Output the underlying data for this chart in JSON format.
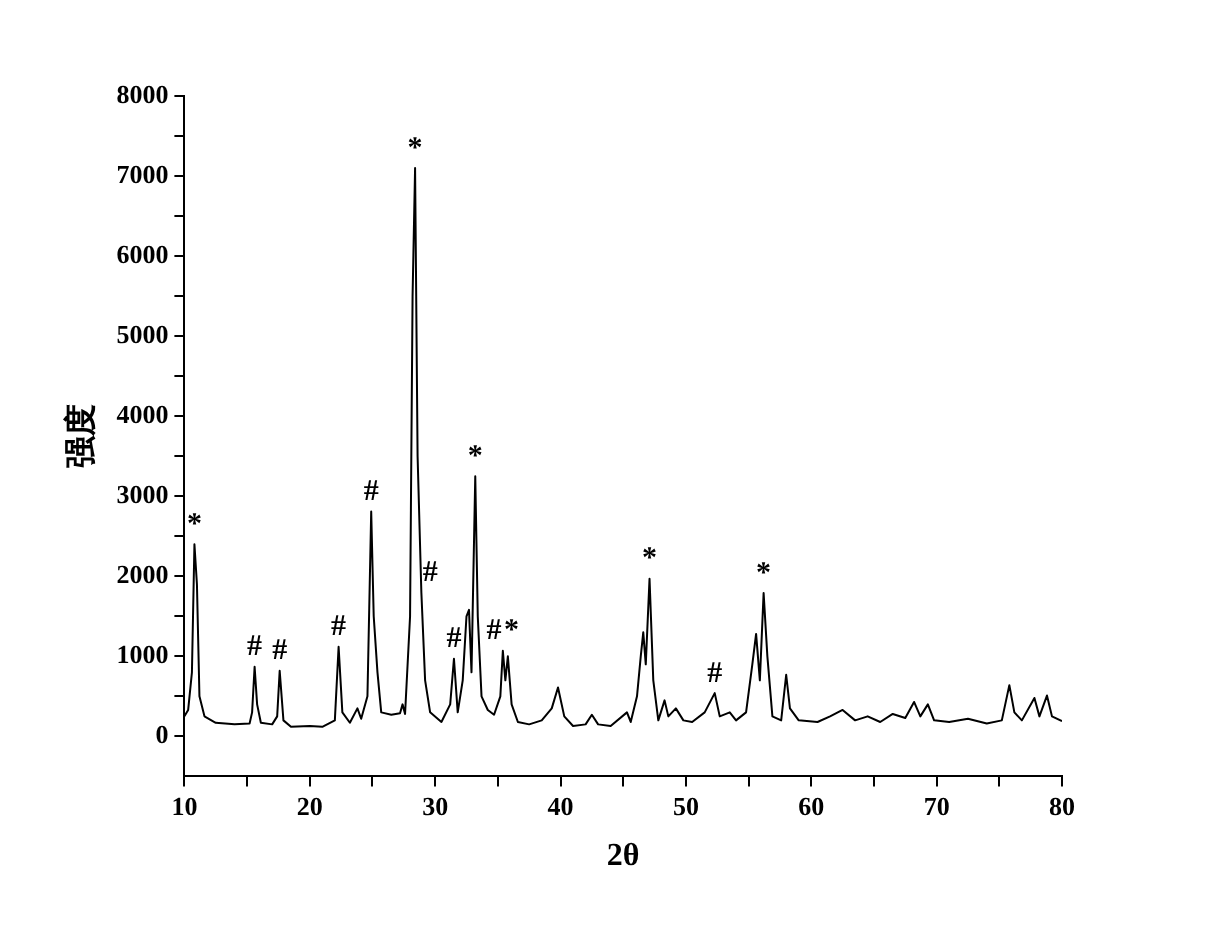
{
  "chart_data": {
    "type": "line",
    "xlabel": "2θ",
    "ylabel": "强度",
    "color": "#000000",
    "xlim": [
      10,
      80
    ],
    "xticks": [
      10,
      {
        "value": 15,
        "label": null
      },
      20,
      {
        "value": 25,
        "label": null
      },
      30,
      {
        "value": 35,
        "label": null
      },
      40,
      {
        "value": 45,
        "label": null
      },
      50,
      {
        "value": 55,
        "label": null
      },
      60,
      {
        "value": 65,
        "label": null
      },
      70,
      {
        "value": 75,
        "label": null
      },
      80
    ],
    "ylim": [
      -500,
      8000
    ],
    "yticks": [
      0,
      {
        "value": 500,
        "label": null
      },
      1000,
      {
        "value": 1500,
        "label": null
      },
      2000,
      {
        "value": 2500,
        "label": null
      },
      3000,
      {
        "value": 3500,
        "label": null
      },
      4000,
      {
        "value": 4500,
        "label": null
      },
      5000,
      {
        "value": 5500,
        "label": null
      },
      6000,
      {
        "value": 6500,
        "label": null
      },
      7000,
      {
        "value": 7500,
        "label": null
      },
      8000
    ],
    "grid": false,
    "legend": false,
    "marker": "none",
    "line_style": "solid",
    "x": [
      10.0,
      10.3,
      10.6,
      10.8,
      11.0,
      11.2,
      11.6,
      12.5,
      14,
      15.2,
      15.4,
      15.6,
      15.8,
      16.1,
      17.0,
      17.4,
      17.6,
      17.9,
      18.5,
      20,
      21,
      22.0,
      22.3,
      22.6,
      23.2,
      23.8,
      24.1,
      24.6,
      24.9,
      25.1,
      25.4,
      25.7,
      26.5,
      27.2,
      27.4,
      27.6,
      28.0,
      28.2,
      28.4,
      28.6,
      28.9,
      29.2,
      29.6,
      30.5,
      31.2,
      31.5,
      31.8,
      32.2,
      32.5,
      32.7,
      32.9,
      33.2,
      33.4,
      33.7,
      34.2,
      34.7,
      35.2,
      35.4,
      35.6,
      35.8,
      36.1,
      36.6,
      37.5,
      38.5,
      39.3,
      39.8,
      40.3,
      41,
      42,
      42.5,
      43,
      44,
      45.3,
      45.6,
      46.1,
      46.4,
      46.6,
      46.8,
      47.1,
      47.4,
      47.8,
      48.3,
      48.6,
      49.2,
      49.8,
      50.5,
      51.5,
      52.3,
      52.7,
      53.5,
      54.0,
      54.8,
      55.3,
      55.6,
      55.9,
      56.2,
      56.5,
      56.9,
      57.6,
      58.0,
      58.3,
      59,
      60.5,
      61.5,
      62.5,
      63.5,
      64.5,
      65.5,
      66.5,
      67.5,
      68.2,
      68.7,
      69.3,
      69.8,
      71,
      72.5,
      74,
      75.2,
      75.8,
      76.2,
      76.8,
      77.8,
      78.2,
      78.8,
      79.2,
      80
    ],
    "values": [
      250,
      330,
      800,
      2400,
      1900,
      500,
      250,
      170,
      150,
      160,
      300,
      870,
      400,
      170,
      150,
      250,
      820,
      200,
      120,
      130,
      120,
      200,
      1120,
      300,
      170,
      350,
      220,
      500,
      2810,
      1500,
      800,
      300,
      270,
      290,
      400,
      280,
      1500,
      5500,
      7100,
      3500,
      1800,
      700,
      300,
      180,
      400,
      970,
      300,
      700,
      1500,
      1580,
      800,
      3250,
      1500,
      500,
      330,
      270,
      500,
      1070,
      700,
      1000,
      400,
      180,
      150,
      200,
      350,
      610,
      250,
      130,
      150,
      270,
      150,
      130,
      300,
      180,
      500,
      1000,
      1300,
      900,
      1970,
      700,
      200,
      450,
      250,
      350,
      200,
      180,
      300,
      540,
      250,
      300,
      200,
      300,
      900,
      1280,
      700,
      1790,
      1000,
      250,
      200,
      770,
      350,
      200,
      180,
      250,
      330,
      200,
      250,
      180,
      280,
      230,
      430,
      250,
      400,
      200,
      180,
      220,
      160,
      200,
      640,
      300,
      200,
      480,
      250,
      510,
      250,
      190
    ],
    "annotations": [
      {
        "text": "*",
        "x": 10.8,
        "y": 2400
      },
      {
        "text": "#",
        "x": 15.6,
        "y": 870
      },
      {
        "text": "#",
        "x": 17.6,
        "y": 820
      },
      {
        "text": "#",
        "x": 22.3,
        "y": 1120
      },
      {
        "text": "#",
        "x": 24.9,
        "y": 2810
      },
      {
        "text": "*",
        "x": 28.4,
        "y": 7100
      },
      {
        "text": "#",
        "x": 29.6,
        "y": 1800
      },
      {
        "text": "#",
        "x": 31.5,
        "y": 970
      },
      {
        "text": "*",
        "x": 33.2,
        "y": 3250
      },
      {
        "text": "#",
        "x": 34.7,
        "y": 1070
      },
      {
        "text": "*",
        "x": 36.1,
        "y": 1070
      },
      {
        "text": "*",
        "x": 47.1,
        "y": 1970
      },
      {
        "text": "#",
        "x": 52.3,
        "y": 540
      },
      {
        "text": "*",
        "x": 56.2,
        "y": 1790
      }
    ]
  }
}
